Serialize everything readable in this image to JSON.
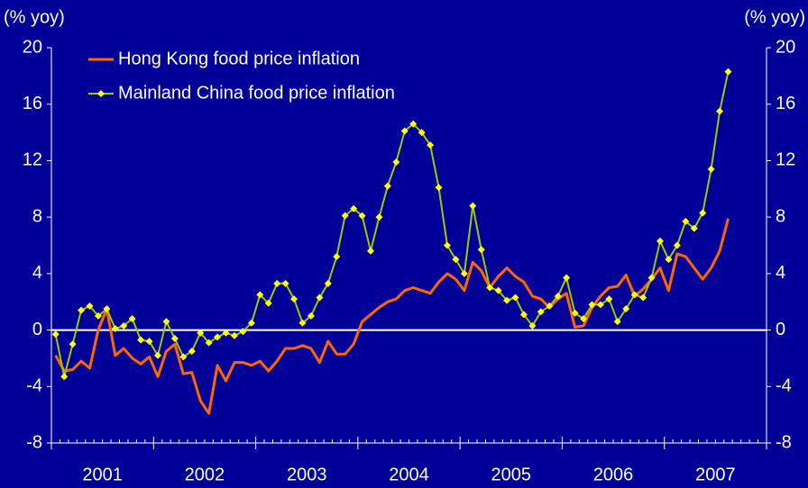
{
  "chart_data": {
    "type": "line",
    "y_label": "(% yoy)",
    "y2_label": "(% yoy)",
    "categories": [
      null,
      null,
      null,
      null,
      null,
      null,
      "2001",
      null,
      null,
      null,
      null,
      null,
      null,
      null,
      null,
      null,
      null,
      null,
      "2002",
      null,
      null,
      null,
      null,
      null,
      null,
      null,
      null,
      null,
      null,
      null,
      "2003",
      null,
      null,
      null,
      null,
      null,
      null,
      null,
      null,
      null,
      null,
      null,
      "2004",
      null,
      null,
      null,
      null,
      null,
      null,
      null,
      null,
      null,
      null,
      null,
      "2005",
      null,
      null,
      null,
      null,
      null,
      null,
      null,
      null,
      null,
      null,
      null,
      "2006",
      null,
      null,
      null,
      null,
      null,
      null,
      null,
      null,
      null,
      null,
      null,
      "2007",
      null,
      null,
      null,
      null,
      null
    ],
    "series": [
      {
        "name": "Hong Kong food price inflation",
        "color": "#ff6600",
        "values": [
          -1.8,
          -2.9,
          -2.8,
          -2.2,
          -2.7,
          0.0,
          1.5,
          -1.8,
          -1.3,
          -2.0,
          -2.4,
          -1.9,
          -3.3,
          -1.5,
          -1.0,
          -3.1,
          -3.0,
          -5.0,
          -5.9,
          -2.5,
          -3.6,
          -2.3,
          -2.3,
          -2.5,
          -2.2,
          -2.9,
          -2.2,
          -1.3,
          -1.3,
          -1.1,
          -1.3,
          -2.3,
          -0.8,
          -1.7,
          -1.7,
          -1.0,
          0.6,
          1.1,
          1.6,
          2.0,
          2.2,
          2.8,
          3.0,
          2.8,
          2.6,
          3.4,
          4.0,
          3.6,
          2.8,
          4.8,
          4.2,
          3.0,
          3.8,
          4.4,
          3.8,
          3.4,
          2.4,
          2.2,
          1.6,
          2.2,
          2.6,
          0.2,
          0.3,
          1.6,
          2.4,
          3.0,
          3.1,
          3.9,
          2.4,
          2.9,
          3.6,
          4.4,
          2.8,
          5.4,
          5.2,
          4.4,
          3.6,
          4.4,
          5.6,
          7.9,
          null,
          null,
          null,
          null
        ]
      },
      {
        "name": "Mainland China food price inflation",
        "color": "#99cc00",
        "marker_color": "#ffff00",
        "values": [
          -0.3,
          -3.3,
          -1.0,
          1.4,
          1.7,
          1.0,
          1.5,
          0.1,
          0.3,
          0.8,
          -0.7,
          -0.8,
          -1.8,
          0.6,
          -0.6,
          -1.9,
          -1.5,
          -0.2,
          -0.9,
          -0.5,
          -0.2,
          -0.4,
          -0.1,
          0.5,
          2.5,
          1.9,
          3.3,
          3.3,
          2.2,
          0.5,
          1.0,
          2.3,
          3.3,
          5.2,
          8.1,
          8.6,
          8.1,
          5.6,
          8.0,
          10.2,
          11.9,
          14.1,
          14.6,
          14.0,
          13.1,
          10.1,
          6.0,
          5.0,
          4.0,
          8.8,
          5.7,
          3.0,
          2.8,
          2.1,
          2.3,
          1.1,
          0.3,
          1.3,
          1.7,
          2.4,
          3.7,
          1.2,
          0.8,
          1.8,
          1.8,
          2.2,
          0.6,
          1.5,
          2.5,
          2.3,
          3.7,
          6.3,
          5.0,
          6.0,
          7.7,
          7.2,
          8.3,
          11.4,
          15.5,
          18.3,
          null,
          null,
          null,
          null
        ]
      }
    ],
    "ylim": [
      -8,
      20
    ],
    "yticks": [
      -8,
      -4,
      0,
      4,
      8,
      12,
      16,
      20
    ],
    "y2lim": [
      -8,
      20
    ],
    "y2ticks": [
      -8,
      -4,
      0,
      4,
      8,
      12,
      16,
      20
    ],
    "zero_line_color": "#ffffff",
    "background": "#000099",
    "legend": "upper left"
  }
}
